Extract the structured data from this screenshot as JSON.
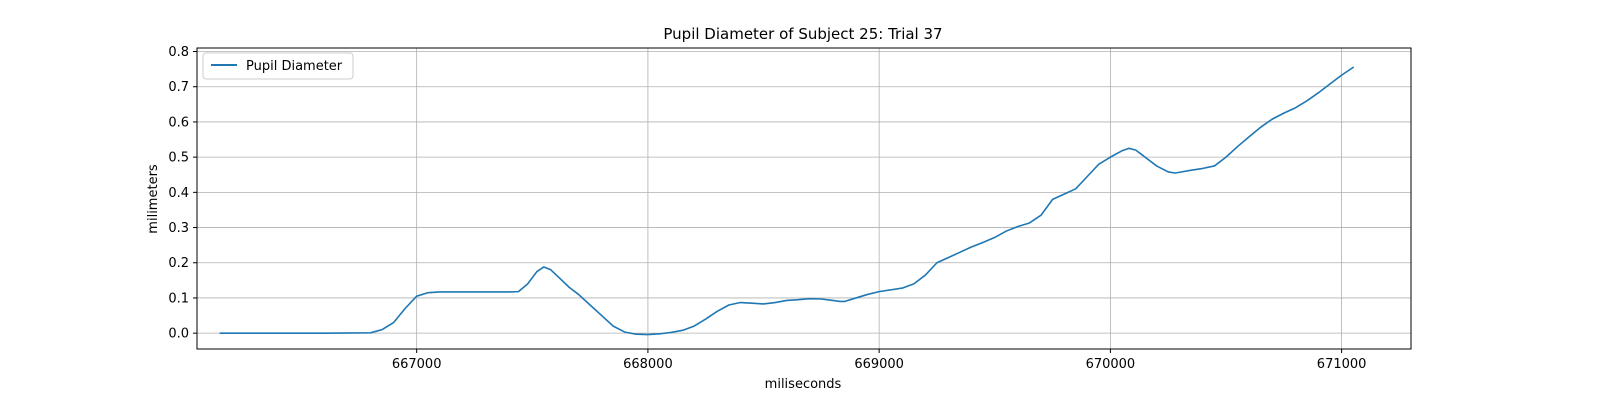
{
  "chart_data": {
    "type": "line",
    "title": "Pupil Diameter of Subject 25: Trial 37",
    "xlabel": "miliseconds",
    "ylabel": "milimeters",
    "xlim": [
      666050,
      671300
    ],
    "ylim": [
      -0.045,
      0.81
    ],
    "xticks": [
      667000,
      668000,
      669000,
      670000,
      671000
    ],
    "xtick_labels": [
      "667000",
      "668000",
      "669000",
      "670000",
      "671000"
    ],
    "yticks": [
      0.0,
      0.1,
      0.2,
      0.3,
      0.4,
      0.5,
      0.6,
      0.7,
      0.8
    ],
    "ytick_labels": [
      "0.0",
      "0.1",
      "0.2",
      "0.3",
      "0.4",
      "0.5",
      "0.6",
      "0.7",
      "0.8"
    ],
    "grid": true,
    "legend": "upper-left",
    "series": [
      {
        "name": "Pupil Diameter",
        "color": "#1f77b4",
        "x": [
          666150,
          666400,
          666600,
          666800,
          666850,
          666900,
          666950,
          667000,
          667050,
          667100,
          667200,
          667300,
          667400,
          667440,
          667480,
          667520,
          667550,
          667580,
          667620,
          667660,
          667700,
          667750,
          667800,
          667850,
          667900,
          667950,
          668000,
          668050,
          668100,
          668150,
          668200,
          668250,
          668300,
          668350,
          668400,
          668450,
          668500,
          668550,
          668600,
          668650,
          668700,
          668750,
          668800,
          668830,
          668850,
          668900,
          668950,
          669000,
          669050,
          669100,
          669150,
          669200,
          669250,
          669300,
          669350,
          669400,
          669450,
          669500,
          669550,
          669600,
          669650,
          669700,
          669750,
          669800,
          669850,
          669900,
          669950,
          670000,
          670050,
          670080,
          670110,
          670150,
          670200,
          670250,
          670280,
          670300,
          670350,
          670400,
          670450,
          670500,
          670550,
          670600,
          670650,
          670700,
          670750,
          670800,
          670850,
          670900,
          670950,
          671000,
          671050
        ],
        "y": [
          0.0,
          0.0,
          0.0,
          0.001,
          0.01,
          0.03,
          0.07,
          0.105,
          0.115,
          0.117,
          0.117,
          0.117,
          0.117,
          0.118,
          0.14,
          0.175,
          0.188,
          0.18,
          0.155,
          0.13,
          0.11,
          0.08,
          0.05,
          0.02,
          0.003,
          -0.003,
          -0.004,
          -0.002,
          0.002,
          0.008,
          0.02,
          0.04,
          0.062,
          0.08,
          0.087,
          0.085,
          0.083,
          0.087,
          0.093,
          0.095,
          0.098,
          0.097,
          0.093,
          0.09,
          0.09,
          0.1,
          0.11,
          0.118,
          0.123,
          0.128,
          0.14,
          0.165,
          0.2,
          0.215,
          0.23,
          0.245,
          0.258,
          0.272,
          0.29,
          0.303,
          0.313,
          0.335,
          0.38,
          0.395,
          0.41,
          0.445,
          0.48,
          0.5,
          0.518,
          0.525,
          0.52,
          0.5,
          0.475,
          0.458,
          0.455,
          0.457,
          0.463,
          0.468,
          0.475,
          0.5,
          0.53,
          0.558,
          0.585,
          0.608,
          0.625,
          0.64,
          0.66,
          0.683,
          0.708,
          0.733,
          0.755
        ]
      }
    ]
  }
}
